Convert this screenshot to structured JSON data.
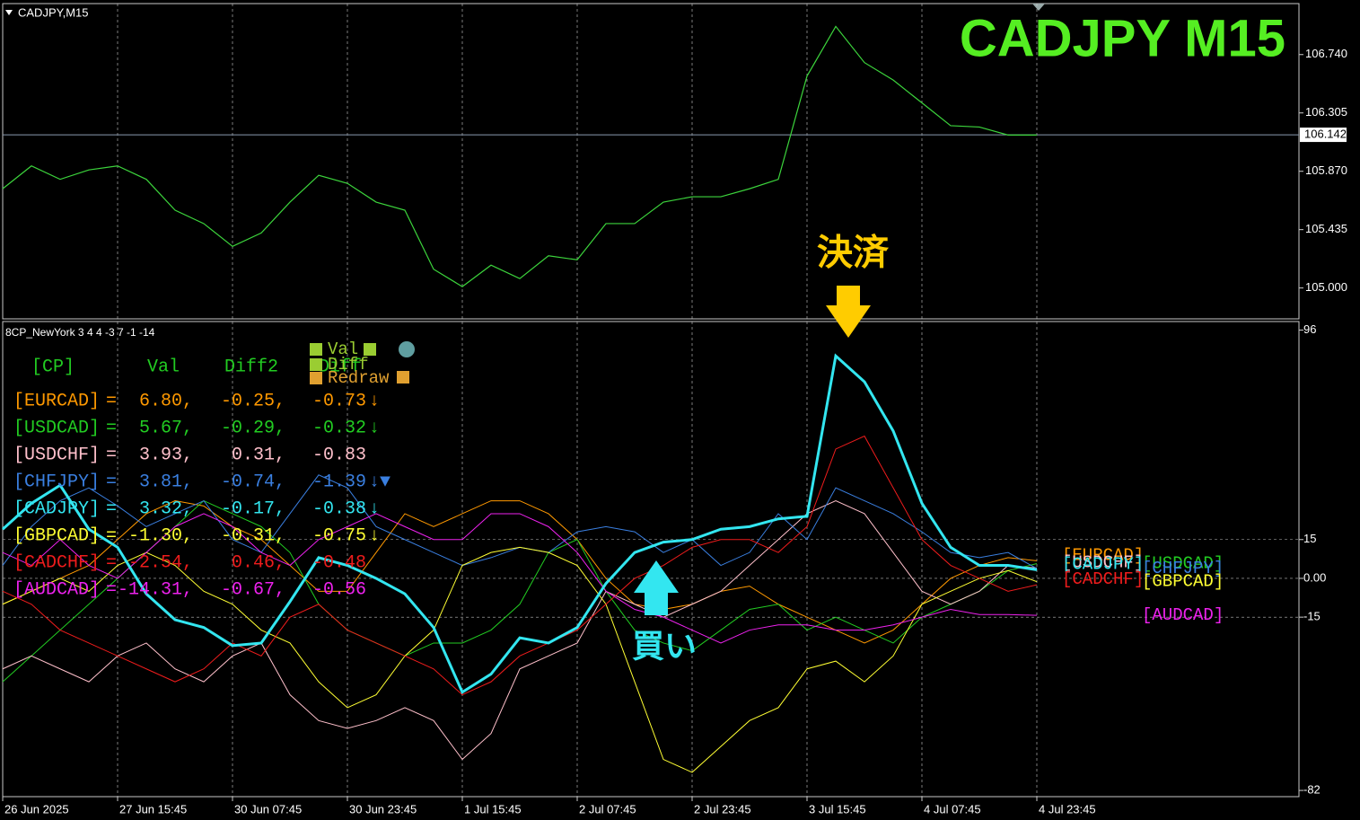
{
  "chart_data": [
    {
      "type": "line",
      "label": "CADJPY,M15",
      "title": "CADJPY  M15",
      "color": "#3cd43c",
      "values": [
        105.74,
        105.91,
        105.81,
        105.88,
        105.91,
        105.81,
        105.58,
        105.48,
        105.31,
        105.41,
        105.64,
        105.84,
        105.78,
        105.64,
        105.58,
        105.14,
        105.01,
        105.17,
        105.07,
        105.24,
        105.21,
        105.48,
        105.48,
        105.64,
        105.68,
        105.68,
        105.74,
        105.81,
        106.58,
        106.95,
        106.68,
        106.55,
        106.38,
        106.21,
        106.2,
        106.14,
        106.14
      ],
      "last_price": {
        "value": 106.142,
        "label": "106.142"
      },
      "ylim": [
        104.77,
        107.12
      ],
      "yticks": [
        {
          "value": 105.0,
          "label": "105.000"
        },
        {
          "value": 105.435,
          "label": "105.435"
        },
        {
          "value": 105.87,
          "label": "105.870"
        },
        {
          "value": 106.305,
          "label": "106.305"
        },
        {
          "value": 106.74,
          "label": "106.740"
        }
      ]
    },
    {
      "type": "line",
      "title": "8CP_NewYork 3 4 4 -3 7 -1 -14",
      "x": [
        "26 Jun 2025",
        null,
        null,
        null,
        "27 Jun 15:45",
        null,
        null,
        null,
        "30 Jun 07:45",
        null,
        null,
        null,
        "30 Jun 23:45",
        null,
        null,
        null,
        "1 Jul 15:45",
        null,
        null,
        null,
        "2 Jul 07:45",
        null,
        null,
        null,
        "2 Jul 23:45",
        null,
        null,
        null,
        "3 Jul 15:45",
        null,
        null,
        null,
        "4 Jul 07:45",
        null,
        null,
        null,
        "4 Jul 23:45"
      ],
      "series": [
        {
          "name": "[EURCAD]",
          "color": "#ff9900",
          "values": [
            -10,
            -5,
            0,
            5,
            15,
            25,
            30,
            28,
            20,
            15,
            5,
            -5,
            -5,
            10,
            25,
            20,
            25,
            30,
            30,
            25,
            15,
            0,
            -10,
            -12,
            -10,
            -5,
            -3,
            -10,
            -15,
            -20,
            -25,
            -20,
            -10,
            0,
            5,
            8,
            6.8
          ]
        },
        {
          "name": "[USDCAD]",
          "color": "#22cc22",
          "values": [
            -40,
            -30,
            -20,
            -10,
            0,
            10,
            20,
            30,
            25,
            20,
            10,
            -10,
            -20,
            -25,
            -30,
            -25,
            -25,
            -20,
            -10,
            10,
            15,
            -5,
            -20,
            -25,
            -28,
            -20,
            -12,
            -10,
            -20,
            -15,
            -20,
            -25,
            -15,
            -10,
            -5,
            3,
            5.7
          ]
        },
        {
          "name": "[USDCHF]",
          "color": "#ffc0cb",
          "values": [
            -35,
            -30,
            -35,
            -40,
            -30,
            -25,
            -35,
            -40,
            -30,
            -25,
            -45,
            -55,
            -58,
            -55,
            -50,
            -55,
            -70,
            -60,
            -35,
            -30,
            -25,
            -5,
            -10,
            -15,
            -10,
            -5,
            5,
            15,
            25,
            30,
            25,
            10,
            -5,
            -10,
            -5,
            5,
            4
          ]
        },
        {
          "name": "[CHFJPY]",
          "color": "#3a7fe0",
          "values": [
            5,
            20,
            30,
            35,
            28,
            20,
            25,
            30,
            15,
            10,
            25,
            40,
            35,
            20,
            15,
            10,
            5,
            8,
            12,
            10,
            18,
            20,
            18,
            10,
            15,
            5,
            10,
            25,
            15,
            35,
            30,
            25,
            18,
            10,
            8,
            10,
            3.8
          ]
        },
        {
          "name": "[CADJPY]",
          "color": "#33e6f0",
          "width": 3,
          "values": [
            19,
            29,
            36,
            19,
            12,
            -6,
            -16,
            -19,
            -26,
            -25,
            -9,
            8,
            5,
            0,
            -6,
            -19,
            -44,
            -37,
            -23,
            -25,
            -19,
            -2,
            10,
            14,
            15,
            19,
            20,
            23,
            24,
            86,
            76,
            57,
            29,
            12,
            5,
            5,
            3.3
          ]
        },
        {
          "name": "[GBPCAD]",
          "color": "#ffff33",
          "values": [
            -10,
            -5,
            0,
            -5,
            5,
            10,
            5,
            -5,
            -10,
            -20,
            -25,
            -40,
            -50,
            -45,
            -30,
            -20,
            5,
            10,
            12,
            10,
            5,
            -10,
            -40,
            -70,
            -75,
            -65,
            -55,
            -50,
            -35,
            -32,
            -40,
            -30,
            -10,
            -5,
            0,
            3,
            -1.3
          ]
        },
        {
          "name": "[CADCHF]",
          "color": "#ee1c1c",
          "values": [
            -5,
            -10,
            -20,
            -25,
            -30,
            -35,
            -40,
            -35,
            -25,
            -30,
            -15,
            -10,
            -20,
            -25,
            -30,
            -35,
            -45,
            -40,
            -30,
            -25,
            -20,
            -10,
            0,
            5,
            12,
            15,
            15,
            10,
            20,
            50,
            55,
            35,
            15,
            5,
            0,
            -5,
            -2.5
          ]
        },
        {
          "name": "[AUDCAD]",
          "color": "#ee22ee",
          "values": [
            10,
            5,
            15,
            5,
            0,
            10,
            20,
            25,
            20,
            10,
            5,
            15,
            20,
            25,
            20,
            15,
            15,
            25,
            25,
            20,
            10,
            -5,
            -12,
            -15,
            -20,
            -25,
            -20,
            -18,
            -18,
            -20,
            -20,
            -18,
            -15,
            -12,
            -14,
            -14,
            -14.3
          ]
        }
      ],
      "ylim": [
        -84.4,
        99.3
      ],
      "yticks": [
        96,
        15,
        {
          "value": 0,
          "label": "0.00"
        },
        -15,
        -82
      ],
      "annotations": {
        "exit": "決済",
        "buy": "買い"
      }
    }
  ],
  "table": {
    "header": [
      "[CP]",
      "Val",
      "Diff2",
      "Diff"
    ],
    "rows": [
      {
        "color": "#ff9900",
        "cells": [
          "[EURCAD]",
          "=",
          "6.80,",
          "-0.25,",
          "-0.73",
          "↓"
        ]
      },
      {
        "color": "#22cc22",
        "cells": [
          "[USDCAD]",
          "=",
          "5.67,",
          "-0.29,",
          "-0.32",
          "↓"
        ]
      },
      {
        "color": "#ffc0cb",
        "cells": [
          "[USDCHF]",
          "=",
          "3.93,",
          "0.31,",
          "-0.83",
          ""
        ]
      },
      {
        "color": "#3a7fe0",
        "cells": [
          "[CHFJPY]",
          "=",
          "3.81,",
          "-0.74,",
          "-1.39",
          "↓▼"
        ]
      },
      {
        "color": "#33e6f0",
        "cells": [
          "[CADJPY]",
          "=",
          "3.32,",
          "-0.17,",
          "-0.38",
          "↓"
        ]
      },
      {
        "color": "#ffff33",
        "cells": [
          "[GBPCAD]",
          "=",
          "-1.30,",
          "-0.31,",
          "-0.75",
          "↓"
        ]
      },
      {
        "color": "#ee1c1c",
        "cells": [
          "[CADCHF]",
          "=",
          "-2.54,",
          "0.46,",
          "-0.48",
          ""
        ]
      },
      {
        "color": "#ee22ee",
        "cells": [
          "[AUDCAD]",
          "=",
          "-14.31,",
          "-0.67,",
          "-0.56",
          ""
        ]
      }
    ]
  },
  "buttons": [
    "Val",
    "Diff",
    "Redraw"
  ]
}
